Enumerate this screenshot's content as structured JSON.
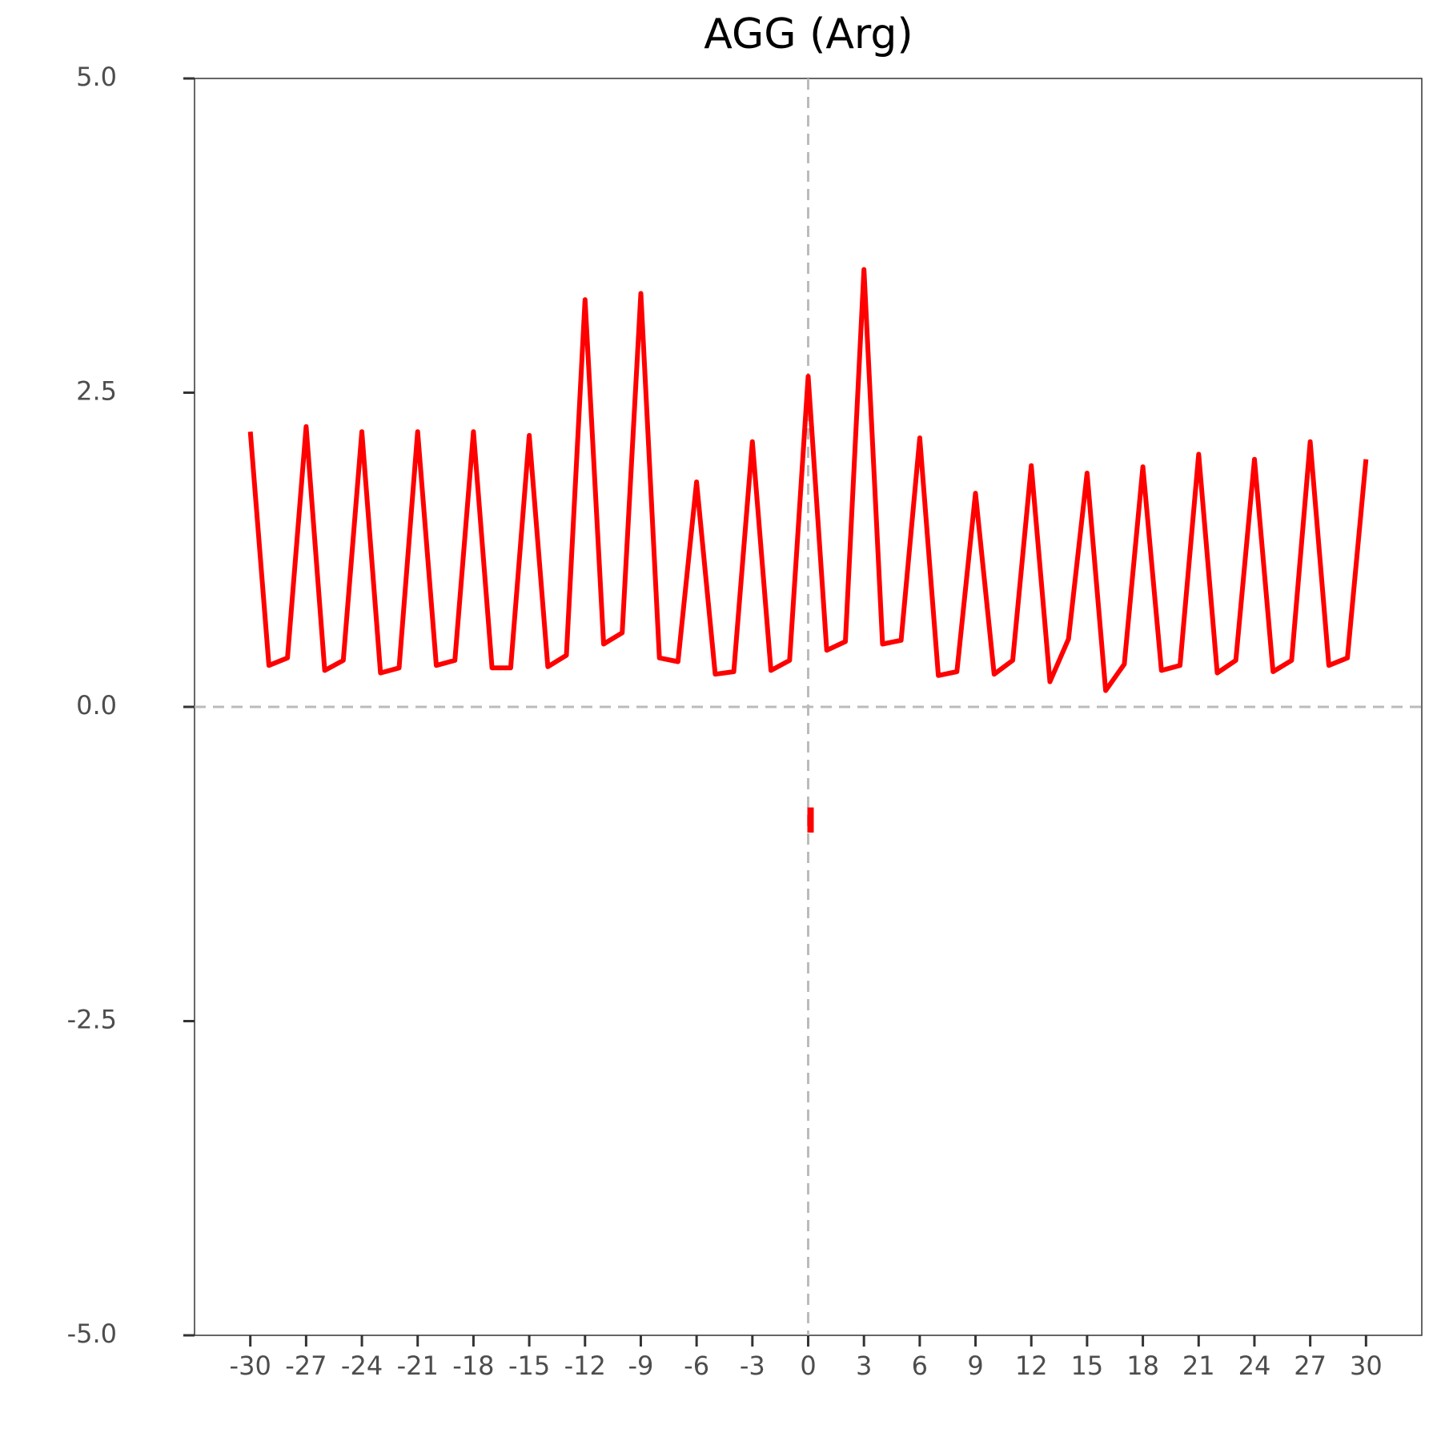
{
  "chart_data": {
    "type": "line",
    "title": "AGG (Arg)",
    "x": [
      -30,
      -29,
      -28,
      -27,
      -26,
      -25,
      -24,
      -23,
      -22,
      -21,
      -20,
      -19,
      -18,
      -17,
      -16,
      -15,
      -14,
      -13,
      -12,
      -11,
      -10,
      -9,
      -8,
      -7,
      -6,
      -5,
      -4,
      -3,
      -2,
      -1,
      0,
      1,
      2,
      3,
      4,
      5,
      6,
      7,
      8,
      9,
      10,
      11,
      12,
      13,
      14,
      15,
      16,
      17,
      18,
      19,
      20,
      21,
      22,
      23,
      24,
      25,
      26,
      27,
      28,
      29,
      30
    ],
    "series": [
      {
        "color": "#ff0000",
        "values": [
          2.19,
          0.33,
          0.39,
          2.23,
          0.29,
          0.37,
          2.19,
          0.27,
          0.31,
          2.19,
          0.33,
          0.37,
          2.19,
          0.31,
          0.31,
          2.16,
          0.32,
          0.41,
          3.24,
          0.5,
          0.59,
          3.29,
          0.39,
          0.36,
          1.79,
          0.26,
          0.28,
          2.11,
          0.29,
          0.37,
          2.63,
          0.45,
          0.52,
          3.48,
          0.5,
          0.53,
          2.14,
          0.25,
          0.28,
          1.7,
          0.26,
          0.37,
          1.92,
          0.2,
          0.54,
          1.86,
          0.13,
          0.34,
          1.91,
          0.29,
          0.33,
          2.01,
          0.27,
          0.37,
          1.97,
          0.28,
          0.37,
          2.11,
          0.33,
          0.39,
          1.97
        ]
      }
    ],
    "segment": {
      "x": 0,
      "y0": -0.8,
      "y1": -1.0,
      "color": "#ff0000"
    },
    "xlim": [
      -33,
      33
    ],
    "xticks": [
      -30,
      -27,
      -24,
      -21,
      -18,
      -15,
      -12,
      -9,
      -6,
      -3,
      0,
      3,
      6,
      9,
      12,
      15,
      18,
      21,
      24,
      27,
      30
    ],
    "ylim": [
      -5,
      5
    ],
    "yticks": [
      {
        "value": -5,
        "label": "-5.0"
      },
      -2.5,
      {
        "value": 0,
        "label": "0.0"
      },
      2.5,
      {
        "value": 5,
        "label": "5.0"
      }
    ],
    "hlines": [
      0
    ],
    "vlines": [
      0
    ],
    "grid": false
  }
}
